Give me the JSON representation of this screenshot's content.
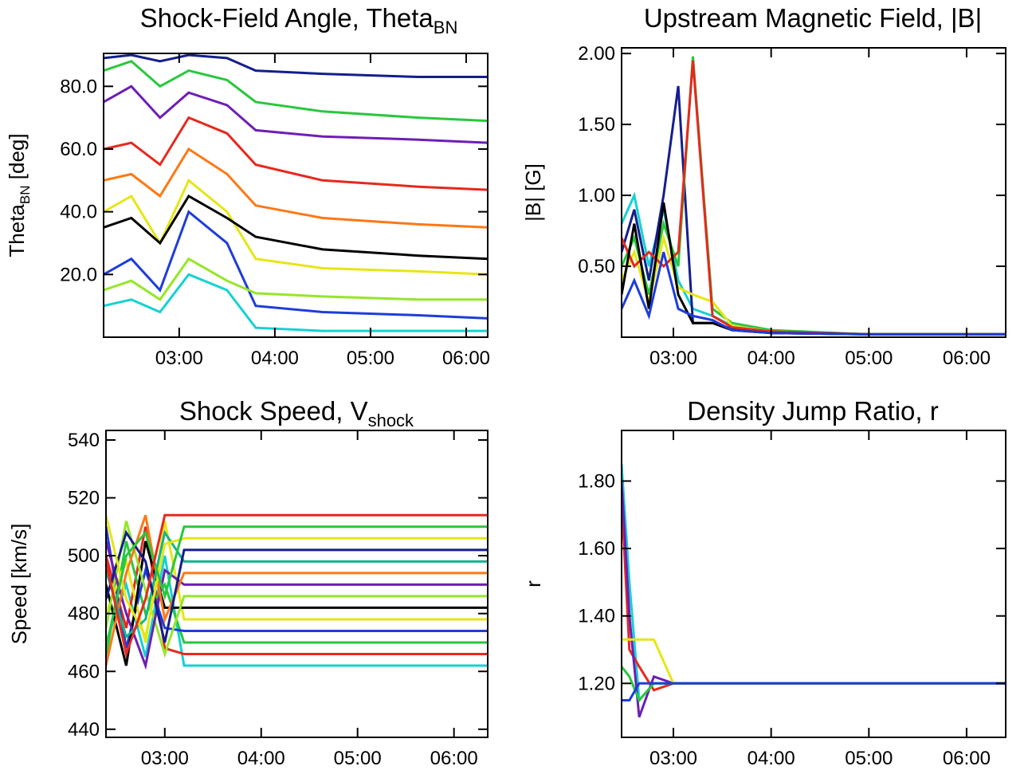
{
  "chart_data": [
    {
      "type": "line",
      "title": "Shock-Field Angle, Theta",
      "title_sub": "BN",
      "ylabel": "Theta",
      "ylabel_sub": "BN",
      "ylabel_tail": " [deg]",
      "xlim": [
        2.21,
        6.225
      ],
      "ylim": [
        0,
        90.5
      ],
      "xticks": [
        {
          "value": 3,
          "label": "03:00"
        },
        {
          "value": 4,
          "label": "04:00"
        },
        {
          "value": 5,
          "label": "05:00"
        },
        {
          "value": 6,
          "label": "06:00"
        }
      ],
      "yticks": [
        {
          "value": 20,
          "label": "20.0"
        },
        {
          "value": 40,
          "label": "40.0"
        },
        {
          "value": 60,
          "label": "60.0"
        },
        {
          "value": 80,
          "label": "80.0"
        }
      ],
      "x": [
        2.21,
        2.5,
        2.8,
        3.1,
        3.5,
        3.8,
        4.5,
        5.5,
        6.225
      ],
      "series": [
        {
          "color": "#e8281e",
          "values": [
            60,
            62,
            55,
            70,
            65,
            55,
            50,
            48,
            47
          ]
        },
        {
          "color": "#1e3cdc",
          "values": [
            20,
            25,
            15,
            40,
            30,
            10,
            8,
            7,
            6
          ]
        },
        {
          "color": "#28c83c",
          "values": [
            85,
            88,
            80,
            85,
            82,
            75,
            72,
            70,
            69
          ]
        },
        {
          "color": "#e6e614",
          "values": [
            40,
            45,
            30,
            50,
            40,
            25,
            22,
            21,
            20
          ]
        },
        {
          "color": "#14d2d2",
          "values": [
            10,
            12,
            8,
            20,
            15,
            3,
            2,
            2,
            2
          ]
        },
        {
          "color": "#000000",
          "values": [
            35,
            38,
            30,
            45,
            38,
            32,
            28,
            26,
            25
          ]
        },
        {
          "color": "#6e1eb4",
          "values": [
            75,
            80,
            70,
            78,
            74,
            66,
            64,
            63,
            62
          ]
        },
        {
          "color": "#ff7814",
          "values": [
            50,
            52,
            45,
            60,
            52,
            42,
            38,
            36,
            35
          ]
        },
        {
          "color": "#141e8c",
          "values": [
            89,
            90,
            88,
            90,
            89,
            85,
            84,
            83,
            83
          ]
        },
        {
          "color": "#96e628",
          "values": [
            15,
            18,
            12,
            25,
            18,
            14,
            13,
            12,
            12
          ]
        }
      ]
    },
    {
      "type": "line",
      "title": "Upstream Magnetic Field, |B|",
      "ylabel": "|B| [G]",
      "xlim": [
        2.47,
        6.4
      ],
      "ylim": [
        0,
        2.04
      ],
      "xticks": [
        {
          "value": 3,
          "label": "03:00"
        },
        {
          "value": 4,
          "label": "04:00"
        },
        {
          "value": 5,
          "label": "05:00"
        },
        {
          "value": 6,
          "label": "06:00"
        }
      ],
      "yticks": [
        {
          "value": 0.5,
          "label": "0.50"
        },
        {
          "value": 1,
          "label": "1.00"
        },
        {
          "value": 1.5,
          "label": "1.50"
        },
        {
          "value": 2,
          "label": "2.00"
        }
      ],
      "x": [
        2.47,
        2.6,
        2.75,
        2.9,
        3.05,
        3.2,
        3.4,
        3.6,
        4.0,
        5.0,
        6.4
      ],
      "series": [
        {
          "color": "#14d2d2",
          "values": [
            0.8,
            1.0,
            0.5,
            0.9,
            0.4,
            0.2,
            0.15,
            0.08,
            0.04,
            0.02,
            0.02
          ]
        },
        {
          "color": "#141e8c",
          "values": [
            0.6,
            0.9,
            0.4,
            1.0,
            1.77,
            0.1,
            0.1,
            0.06,
            0.03,
            0.02,
            0.02
          ]
        },
        {
          "color": "#28c83c",
          "values": [
            0.5,
            0.7,
            0.3,
            0.8,
            0.5,
            1.98,
            0.2,
            0.1,
            0.05,
            0.02,
            0.02
          ]
        },
        {
          "color": "#e6e614",
          "values": [
            0.4,
            0.6,
            0.25,
            0.7,
            0.35,
            0.3,
            0.25,
            0.08,
            0.04,
            0.02,
            0.02
          ]
        },
        {
          "color": "#e8281e",
          "values": [
            0.7,
            0.5,
            0.6,
            0.5,
            0.6,
            1.95,
            0.15,
            0.07,
            0.04,
            0.02,
            0.02
          ]
        },
        {
          "color": "#000000",
          "values": [
            0.3,
            0.8,
            0.2,
            0.95,
            0.3,
            0.1,
            0.1,
            0.05,
            0.03,
            0.02,
            0.02
          ]
        },
        {
          "color": "#1e3cdc",
          "values": [
            0.2,
            0.4,
            0.15,
            0.6,
            0.2,
            0.15,
            0.12,
            0.05,
            0.03,
            0.02,
            0.02
          ]
        }
      ]
    },
    {
      "type": "line",
      "title": "Shock Speed, V",
      "title_sub": "shock",
      "ylabel": "Speed [km/s]",
      "xlim": [
        2.39,
        6.35
      ],
      "ylim": [
        437.2,
        543.3
      ],
      "xticks": [
        {
          "value": 3,
          "label": "03:00"
        },
        {
          "value": 4,
          "label": "04:00"
        },
        {
          "value": 5,
          "label": "05:00"
        },
        {
          "value": 6,
          "label": "06:00"
        }
      ],
      "yticks": [
        440,
        460,
        480,
        500,
        520,
        540
      ],
      "x": [
        2.39,
        2.6,
        2.8,
        3.0,
        3.2,
        6.35
      ],
      "series": [
        {
          "color": "#14d2d2",
          "values": [
            470,
            490,
            465,
            500,
            462,
            462
          ]
        },
        {
          "color": "#e8281e",
          "values": [
            500,
            475,
            510,
            468,
            466,
            466
          ]
        },
        {
          "color": "#28c83c",
          "values": [
            465,
            505,
            480,
            490,
            470,
            470
          ]
        },
        {
          "color": "#1e3cdc",
          "values": [
            510,
            468,
            495,
            475,
            474,
            474
          ]
        },
        {
          "color": "#e6e614",
          "values": [
            480,
            498,
            470,
            512,
            478,
            478
          ]
        },
        {
          "color": "#000000",
          "values": [
            490,
            462,
            505,
            482,
            482,
            482
          ]
        },
        {
          "color": "#96e628",
          "values": [
            475,
            512,
            488,
            466,
            486,
            486
          ]
        },
        {
          "color": "#6e1eb4",
          "values": [
            505,
            480,
            462,
            495,
            490,
            490
          ]
        },
        {
          "color": "#ff7814",
          "values": [
            462,
            494,
            514,
            478,
            494,
            494
          ]
        },
        {
          "color": "#14b48c",
          "values": [
            495,
            472,
            478,
            508,
            498,
            498
          ]
        },
        {
          "color": "#141e8c",
          "values": [
            485,
            508,
            498,
            470,
            502,
            502
          ]
        },
        {
          "color": "#e6e614",
          "values": [
            514,
            485,
            472,
            504,
            506,
            506
          ]
        },
        {
          "color": "#28c83c",
          "values": [
            468,
            500,
            508,
            486,
            510,
            510
          ]
        },
        {
          "color": "#e8281e",
          "values": [
            498,
            466,
            485,
            514,
            514,
            514
          ]
        }
      ]
    },
    {
      "type": "line",
      "title": "Density Jump Ratio, r",
      "ylabel": "r",
      "xlim": [
        2.47,
        6.4
      ],
      "ylim": [
        1.04,
        1.95
      ],
      "xticks": [
        {
          "value": 3,
          "label": "03:00"
        },
        {
          "value": 4,
          "label": "04:00"
        },
        {
          "value": 5,
          "label": "05:00"
        },
        {
          "value": 6,
          "label": "06:00"
        }
      ],
      "yticks": [
        {
          "value": 1.2,
          "label": "1.20"
        },
        {
          "value": 1.4,
          "label": "1.40"
        },
        {
          "value": 1.6,
          "label": "1.60"
        },
        {
          "value": 1.8,
          "label": "1.80"
        }
      ],
      "x": [
        2.47,
        2.55,
        2.65,
        2.8,
        3.0,
        4.0,
        5.0,
        6.4
      ],
      "series": [
        {
          "color": "#14d2d2",
          "values": [
            1.85,
            1.5,
            1.15,
            1.2,
            1.2,
            1.2,
            1.2,
            1.2
          ]
        },
        {
          "color": "#e8281e",
          "values": [
            1.75,
            1.3,
            1.25,
            1.18,
            1.2,
            1.2,
            1.2,
            1.2
          ]
        },
        {
          "color": "#6e1eb4",
          "values": [
            1.8,
            1.4,
            1.1,
            1.22,
            1.2,
            1.2,
            1.2,
            1.2
          ]
        },
        {
          "color": "#e6e614",
          "values": [
            1.33,
            1.33,
            1.33,
            1.33,
            1.2,
            1.2,
            1.2,
            1.2
          ]
        },
        {
          "color": "#28c83c",
          "values": [
            1.25,
            1.22,
            1.15,
            1.2,
            1.2,
            1.2,
            1.2,
            1.2
          ]
        },
        {
          "color": "#1e3cdc",
          "values": [
            1.15,
            1.15,
            1.2,
            1.2,
            1.2,
            1.2,
            1.2,
            1.2
          ]
        }
      ]
    }
  ]
}
